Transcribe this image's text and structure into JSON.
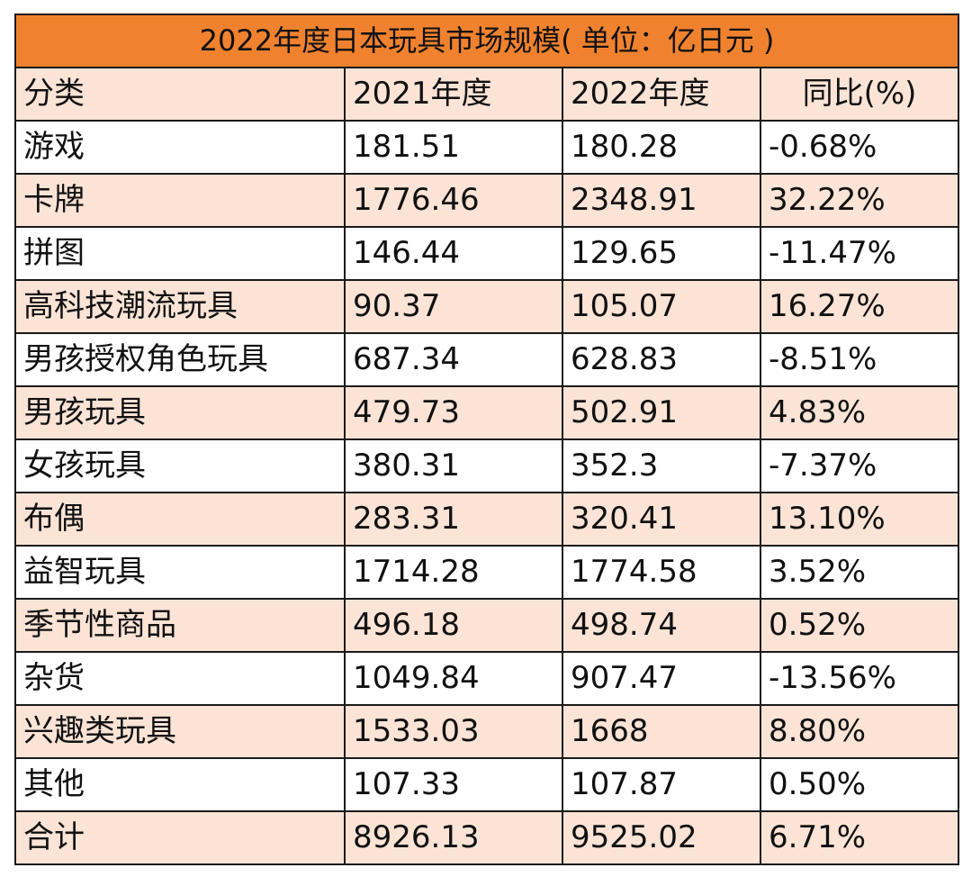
{
  "colors": {
    "title_bg": "#f0822f",
    "stripe_bg": "#fbe3d6",
    "plain_bg": "#ffffff",
    "border": "#1a1a1a"
  },
  "table": {
    "title": "2022年度日本玩具市场规模( 单位：亿日元 )",
    "headers": [
      "分类",
      "2021年度",
      "2022年度",
      "同比(%)"
    ],
    "rows": [
      [
        "游戏",
        "181.51",
        "180.28",
        "-0.68%"
      ],
      [
        "卡牌",
        "1776.46",
        "2348.91",
        "32.22%"
      ],
      [
        "拼图",
        "146.44",
        "129.65",
        "-11.47%"
      ],
      [
        "高科技潮流玩具",
        "90.37",
        "105.07",
        "16.27%"
      ],
      [
        "男孩授权角色玩具",
        "687.34",
        "628.83",
        "-8.51%"
      ],
      [
        "男孩玩具",
        "479.73",
        "502.91",
        "4.83%"
      ],
      [
        "女孩玩具",
        "380.31",
        "352.3",
        "-7.37%"
      ],
      [
        "布偶",
        "283.31",
        "320.41",
        "13.10%"
      ],
      [
        "益智玩具",
        "1714.28",
        "1774.58",
        "3.52%"
      ],
      [
        "季节性商品",
        "496.18",
        "498.74",
        "0.52%"
      ],
      [
        "杂货",
        "1049.84",
        "907.47",
        "-13.56%"
      ],
      [
        "兴趣类玩具",
        "1533.03",
        "1668",
        "8.80%"
      ],
      [
        "其他",
        "107.33",
        "107.87",
        "0.50%"
      ],
      [
        "合计",
        "8926.13",
        "9525.02",
        "6.71%"
      ]
    ]
  }
}
